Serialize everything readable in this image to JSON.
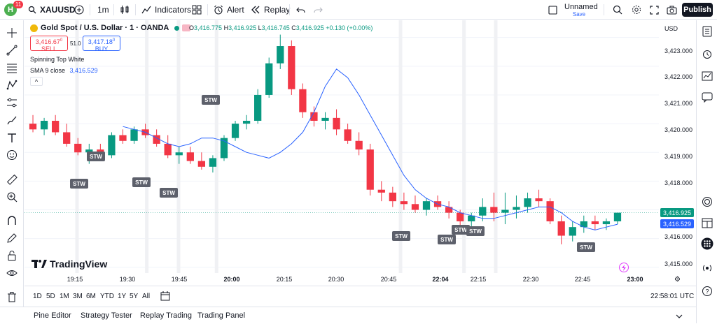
{
  "header": {
    "logo_letter": "H",
    "notifications": "11",
    "symbol": "XAUUSD",
    "interval": "1m",
    "indicators_label": "Indicators",
    "alert_label": "Alert",
    "replay_label": "Replay",
    "layout_name": "Unnamed",
    "save_label": "Save",
    "publish_label": "Publish"
  },
  "legend": {
    "title": "Gold Spot / U.S. Dollar · 1 · OANDA",
    "open_k": "O",
    "open_v": "3,416.775",
    "high_k": "H",
    "high_v": "3,416.925",
    "low_k": "L",
    "low_v": "3,416.745",
    "close_k": "C",
    "close_v": "3,416.925",
    "change": "+0.130 (+0.00%)",
    "sell_price": "3,416.67",
    "sell_sup": "0",
    "sell_label": "SELL",
    "spread": "51.0",
    "buy_price": "3,417.18",
    "buy_sup": "0",
    "buy_label": "BUY",
    "indicator1": "Spinning Top White",
    "indicator2_name": "SMA 9 close",
    "indicator2_value": "3,416.529",
    "collapse": "^"
  },
  "price_axis": {
    "currency": "USD",
    "ticks": [
      "3,423.000",
      "3,422.000",
      "3,421.000",
      "3,420.000",
      "3,419.000",
      "3,418.000",
      "3,416.000",
      "3,415.000"
    ],
    "last_price": "3,416.925",
    "sma_price": "3,416.529"
  },
  "time_axis": {
    "ticks": [
      "19:15",
      "19:30",
      "19:45",
      "20:00",
      "20:15",
      "20:30",
      "20:45",
      "22:04",
      "22:15",
      "22:30",
      "22:45",
      "23:00"
    ]
  },
  "ranges": [
    "1D",
    "5D",
    "1M",
    "3M",
    "6M",
    "YTD",
    "1Y",
    "5Y",
    "All"
  ],
  "clock": "22:58:01 UTC",
  "panels": [
    "Pine Editor",
    "Strategy Tester",
    "Replay Trading",
    "Trading Panel"
  ],
  "brand": "TradingView",
  "pattern_label": "STW",
  "colors": {
    "up": "#089981",
    "down": "#f23645",
    "sma": "#2962ff",
    "marker": "#5d606b"
  },
  "chart_data": {
    "type": "candlestick",
    "ylim": [
      3414.8,
      3423.6
    ],
    "candles": [
      [
        3420.0,
        3420.3,
        3419.7,
        3419.8
      ],
      [
        3419.8,
        3420.2,
        3419.6,
        3420.1
      ],
      [
        3420.1,
        3420.3,
        3419.6,
        3419.7
      ],
      [
        3419.7,
        3420.0,
        3419.2,
        3419.3
      ],
      [
        3419.3,
        3419.5,
        3418.9,
        3419.0
      ],
      [
        3419.0,
        3419.3,
        3418.6,
        3419.1
      ],
      [
        3419.1,
        3419.3,
        3418.7,
        3418.9
      ],
      [
        3418.9,
        3419.7,
        3418.8,
        3419.6
      ],
      [
        3419.6,
        3419.8,
        3419.3,
        3419.4
      ],
      [
        3419.4,
        3419.9,
        3419.3,
        3419.8
      ],
      [
        3419.8,
        3420.0,
        3419.5,
        3419.6
      ],
      [
        3419.6,
        3419.8,
        3419.2,
        3419.3
      ],
      [
        3419.3,
        3419.6,
        3418.8,
        3418.9
      ],
      [
        3418.9,
        3419.2,
        3418.6,
        3419.0
      ],
      [
        3419.0,
        3419.2,
        3418.6,
        3418.7
      ],
      [
        3418.7,
        3419.0,
        3418.4,
        3418.5
      ],
      [
        3418.5,
        3418.9,
        3418.3,
        3418.8
      ],
      [
        3418.8,
        3419.6,
        3418.7,
        3419.5
      ],
      [
        3419.5,
        3420.1,
        3419.4,
        3420.0
      ],
      [
        3420.0,
        3420.3,
        3419.8,
        3420.1
      ],
      [
        3420.1,
        3421.2,
        3420.0,
        3421.0
      ],
      [
        3421.0,
        3422.3,
        3420.9,
        3422.1
      ],
      [
        3422.1,
        3423.1,
        3421.9,
        3422.7
      ],
      [
        3422.7,
        3422.9,
        3421.0,
        3421.2
      ],
      [
        3421.2,
        3421.4,
        3420.2,
        3420.4
      ],
      [
        3420.4,
        3420.6,
        3419.9,
        3420.1
      ],
      [
        3420.1,
        3420.4,
        3419.8,
        3420.2
      ],
      [
        3420.2,
        3420.5,
        3419.6,
        3419.8
      ],
      [
        3419.8,
        3420.0,
        3419.3,
        3419.4
      ],
      [
        3419.4,
        3419.7,
        3418.9,
        3419.1
      ],
      [
        3419.1,
        3419.3,
        3417.5,
        3417.7
      ],
      [
        3417.7,
        3418.0,
        3417.3,
        3417.6
      ],
      [
        3417.6,
        3417.8,
        3417.1,
        3417.3
      ],
      [
        3417.3,
        3417.6,
        3417.0,
        3417.2
      ],
      [
        3417.2,
        3417.5,
        3416.9,
        3417.0
      ],
      [
        3417.0,
        3417.4,
        3416.8,
        3417.3
      ],
      [
        3417.3,
        3417.5,
        3417.0,
        3417.1
      ],
      [
        3417.1,
        3417.3,
        3416.7,
        3416.9
      ],
      [
        3416.9,
        3417.0,
        3416.4,
        3416.6
      ],
      [
        3416.6,
        3416.9,
        3416.3,
        3416.8
      ],
      [
        3416.8,
        3417.4,
        3416.6,
        3417.1
      ],
      [
        3417.1,
        3417.6,
        3416.6,
        3416.9
      ],
      [
        3416.9,
        3417.6,
        3416.5,
        3417.0
      ],
      [
        3417.0,
        3417.5,
        3416.7,
        3417.1
      ],
      [
        3417.1,
        3417.6,
        3416.9,
        3417.4
      ],
      [
        3417.4,
        3417.7,
        3417.1,
        3417.3
      ],
      [
        3417.3,
        3417.4,
        3416.5,
        3416.6
      ],
      [
        3416.6,
        3416.8,
        3415.8,
        3416.1
      ],
      [
        3416.1,
        3416.6,
        3415.9,
        3416.4
      ],
      [
        3416.4,
        3416.8,
        3416.2,
        3416.6
      ],
      [
        3416.6,
        3416.8,
        3416.3,
        3416.5
      ],
      [
        3416.5,
        3416.7,
        3416.3,
        3416.6
      ],
      [
        3416.6,
        3416.9,
        3416.5,
        3416.9
      ]
    ],
    "sma9": [
      3419.9,
      3419.8,
      3419.7,
      3419.5,
      3419.3,
      3419.2,
      3419.3,
      3419.5,
      3419.5,
      3419.4,
      3419.2,
      3419.0,
      3418.9,
      3418.8,
      3419.0,
      3419.3,
      3419.7,
      3420.4,
      3421.3,
      3421.9,
      3421.6,
      3421.0,
      3420.3,
      3419.6,
      3418.9,
      3418.2,
      3417.7,
      3417.4,
      3417.2,
      3417.1,
      3416.9,
      3416.8,
      3416.7,
      3416.7,
      3416.8,
      3416.9,
      3417.0,
      3417.1,
      3417.1,
      3416.9,
      3416.6,
      3416.4,
      3416.3,
      3416.4,
      3416.5
    ]
  }
}
